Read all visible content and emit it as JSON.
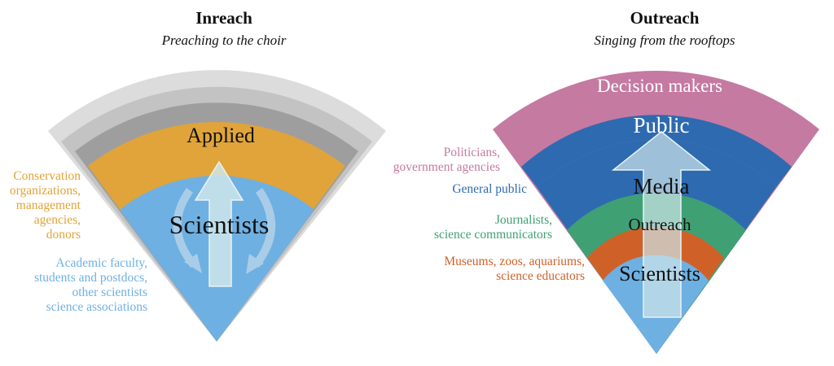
{
  "inreach": {
    "title": "Inreach",
    "subtitle": "Preaching to the choir",
    "layers": {
      "applied": "Applied",
      "scientists": "Scientists"
    },
    "side_labels": {
      "applied": [
        "Conservation",
        "organizations,",
        "management",
        "agencies,",
        "donors"
      ],
      "scientists": [
        "Academic faculty,",
        "students and postdocs,",
        "other scientists",
        "science associations"
      ]
    }
  },
  "outreach": {
    "title": "Outreach",
    "subtitle": "Singing from the rooftops",
    "layers": {
      "decision_makers": "Decision makers",
      "public": "Public",
      "media": "Media",
      "outreach": "Outreach",
      "scientists": "Scientists"
    },
    "side_labels": {
      "decision_makers": [
        "Politicians,",
        "government agencies"
      ],
      "public": [
        "General public"
      ],
      "media": [
        "Journalists,",
        "science communicators"
      ],
      "outreach": [
        "Museums, zoos, aquariums,",
        "science educators"
      ]
    }
  },
  "colors": {
    "scientists": "#6fb0e2",
    "applied": "#e0a43a",
    "gray_dark": "#9e9e9e",
    "gray_mid": "#c3c3c3",
    "gray_light": "#dcdcdc",
    "decision_makers": "#c57aa2",
    "public": "#2e6ab0",
    "media": "#3fa074",
    "outreach": "#cf6128",
    "arrow": "#cfe6ea"
  }
}
